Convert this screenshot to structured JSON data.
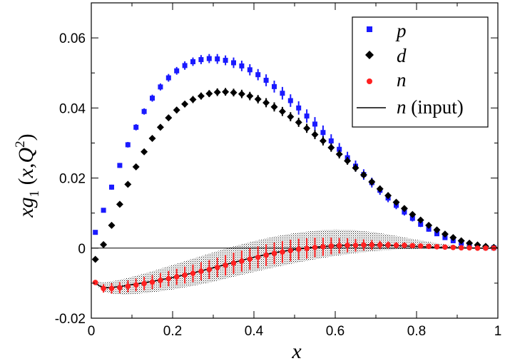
{
  "chart_data": {
    "type": "scatter",
    "title": "",
    "xlabel": "x",
    "ylabel": "xg1(x,Q^2)",
    "xlim": [
      0,
      1
    ],
    "ylim": [
      -0.02,
      0.07
    ],
    "x_ticks": [
      0,
      0.2,
      0.4,
      0.6,
      0.8,
      1
    ],
    "x_tick_labels": [
      "0",
      "0.2",
      "0.4",
      "0.6",
      "0.8",
      "1"
    ],
    "y_ticks": [
      -0.02,
      0,
      0.02,
      0.04,
      0.06
    ],
    "y_tick_labels": [
      "-0.02",
      "0",
      "0.02",
      "0.04",
      "0.06"
    ],
    "ylabel_parts": {
      "x": "x",
      "g": "g",
      "sub": "1",
      "open": " (",
      "arg": "x",
      "comma": ",",
      "Q": "Q",
      "sup": "2",
      "close": ")"
    },
    "zero_line": true,
    "legend_position": "top-right",
    "colors": {
      "p": "#1a1aff",
      "d": "#000000",
      "n": "#ff2020",
      "band": "#000000",
      "line": "#000000"
    },
    "x": [
      0.01,
      0.03,
      0.05,
      0.07,
      0.09,
      0.11,
      0.13,
      0.15,
      0.17,
      0.19,
      0.21,
      0.23,
      0.25,
      0.27,
      0.29,
      0.31,
      0.33,
      0.35,
      0.37,
      0.39,
      0.41,
      0.43,
      0.45,
      0.47,
      0.49,
      0.51,
      0.53,
      0.55,
      0.57,
      0.59,
      0.61,
      0.63,
      0.65,
      0.67,
      0.69,
      0.71,
      0.73,
      0.75,
      0.77,
      0.79,
      0.81,
      0.83,
      0.85,
      0.87,
      0.89,
      0.91,
      0.93,
      0.95,
      0.97,
      0.99
    ],
    "series": [
      {
        "name": "p",
        "marker": "square",
        "values": [
          0.0045,
          0.0108,
          0.0174,
          0.0236,
          0.0295,
          0.0345,
          0.039,
          0.0428,
          0.046,
          0.0486,
          0.0506,
          0.0521,
          0.0532,
          0.0538,
          0.0541,
          0.054,
          0.0536,
          0.0529,
          0.052,
          0.0509,
          0.0495,
          0.0479,
          0.0461,
          0.0442,
          0.0421,
          0.04,
          0.0377,
          0.0354,
          0.033,
          0.0306,
          0.0282,
          0.0258,
          0.0234,
          0.021,
          0.0187,
          0.0165,
          0.0143,
          0.0122,
          0.0103,
          0.0085,
          0.0068,
          0.0054,
          0.0041,
          0.003,
          0.0021,
          0.0014,
          0.0008,
          0.0004,
          0.0002,
          0.0001
        ],
        "errors": [
          0.0005,
          0.0006,
          0.0007,
          0.0007,
          0.0008,
          0.0009,
          0.0009,
          0.001,
          0.001,
          0.0011,
          0.0011,
          0.0012,
          0.0012,
          0.0013,
          0.0013,
          0.0014,
          0.0014,
          0.0015,
          0.0015,
          0.0016,
          0.0016,
          0.0017,
          0.0017,
          0.0018,
          0.0018,
          0.0019,
          0.0019,
          0.002,
          0.002,
          0.0019,
          0.0018,
          0.0017,
          0.0016,
          0.0015,
          0.0014,
          0.0013,
          0.0012,
          0.0011,
          0.001,
          0.0009,
          0.0008,
          0.0007,
          0.0006,
          0.0005,
          0.0004,
          0.0003,
          0.0003,
          0.0002,
          0.0002,
          0.0002
        ]
      },
      {
        "name": "d",
        "marker": "diamond",
        "values": [
          -0.0032,
          0.001,
          0.0065,
          0.0125,
          0.0182,
          0.0232,
          0.0275,
          0.0313,
          0.0345,
          0.0372,
          0.0394,
          0.0411,
          0.0424,
          0.0434,
          0.0441,
          0.0445,
          0.0446,
          0.0444,
          0.044,
          0.0434,
          0.0425,
          0.0415,
          0.0403,
          0.039,
          0.0375,
          0.0359,
          0.0342,
          0.0324,
          0.0306,
          0.0287,
          0.0268,
          0.0249,
          0.0229,
          0.0209,
          0.0189,
          0.0169,
          0.015,
          0.0131,
          0.0113,
          0.0096,
          0.008,
          0.0065,
          0.0052,
          0.004,
          0.003,
          0.0021,
          0.0014,
          0.0009,
          0.0005,
          0.0002
        ],
        "errors": [
          0.0004,
          0.0004,
          0.0005,
          0.0006,
          0.0006,
          0.0007,
          0.0007,
          0.0008,
          0.0008,
          0.0008,
          0.0009,
          0.0009,
          0.001,
          0.001,
          0.001,
          0.0011,
          0.0011,
          0.0011,
          0.0012,
          0.0012,
          0.0012,
          0.0013,
          0.0013,
          0.0013,
          0.0013,
          0.0013,
          0.0013,
          0.0013,
          0.0013,
          0.0012,
          0.0012,
          0.0011,
          0.0011,
          0.001,
          0.001,
          0.0009,
          0.0009,
          0.0008,
          0.0008,
          0.0007,
          0.0007,
          0.0006,
          0.0006,
          0.0005,
          0.0005,
          0.0004,
          0.0004,
          0.0003,
          0.0003,
          0.0003
        ]
      },
      {
        "name": "n",
        "marker": "circle",
        "values": [
          -0.0098,
          -0.0115,
          -0.0115,
          -0.0113,
          -0.0109,
          -0.0105,
          -0.0101,
          -0.0097,
          -0.0092,
          -0.0087,
          -0.0082,
          -0.0077,
          -0.0072,
          -0.0066,
          -0.0061,
          -0.0055,
          -0.0049,
          -0.0043,
          -0.0037,
          -0.0031,
          -0.0026,
          -0.002,
          -0.0015,
          -0.0011,
          -0.0007,
          -0.0003,
          -0.0001,
          0.0002,
          0.0004,
          0.0006,
          0.0007,
          0.0008,
          0.0008,
          0.0009,
          0.0009,
          0.0009,
          0.0009,
          0.0008,
          0.0008,
          0.0007,
          0.0006,
          0.0005,
          0.0004,
          0.0003,
          0.0002,
          0.0001,
          0.0001,
          0.0,
          0.0,
          0.0
        ],
        "errors": [
          0.0006,
          0.0012,
          0.0015,
          0.0016,
          0.0017,
          0.0018,
          0.0019,
          0.002,
          0.0021,
          0.0022,
          0.0023,
          0.0024,
          0.0025,
          0.0026,
          0.0027,
          0.0028,
          0.0029,
          0.003,
          0.003,
          0.0031,
          0.0031,
          0.0031,
          0.0031,
          0.0031,
          0.0031,
          0.003,
          0.0029,
          0.0028,
          0.0026,
          0.0024,
          0.0022,
          0.002,
          0.0018,
          0.0016,
          0.0014,
          0.0012,
          0.001,
          0.0009,
          0.0008,
          0.0007,
          0.0006,
          0.0005,
          0.0004,
          0.0004,
          0.0003,
          0.0003,
          0.0002,
          0.0002,
          0.0002,
          0.0002
        ]
      },
      {
        "name": "n (input)",
        "marker": "line",
        "x": [
          0.01,
          0.02,
          0.03,
          0.04,
          0.05,
          0.07,
          0.1,
          0.15,
          0.2,
          0.25,
          0.3,
          0.35,
          0.4,
          0.45,
          0.5,
          0.55,
          0.6,
          0.65,
          0.7,
          0.75,
          0.8,
          0.85,
          0.9,
          0.95,
          1.0
        ],
        "values": [
          -0.0098,
          -0.0108,
          -0.0112,
          -0.0113,
          -0.0112,
          -0.011,
          -0.0104,
          -0.0095,
          -0.0084,
          -0.0071,
          -0.0056,
          -0.0041,
          -0.0026,
          -0.0013,
          -0.0004,
          0.0003,
          0.0007,
          0.0009,
          0.0009,
          0.0007,
          0.0005,
          0.0002,
          0.0001,
          0.0,
          0.0
        ]
      }
    ],
    "band": {
      "name": "n uncertainty band",
      "x": [
        0.01,
        0.03,
        0.05,
        0.08,
        0.1,
        0.15,
        0.2,
        0.25,
        0.3,
        0.35,
        0.4,
        0.45,
        0.5,
        0.55,
        0.6,
        0.65,
        0.7,
        0.75,
        0.8,
        0.85,
        0.9,
        0.95,
        1.0
      ],
      "upper": [
        -0.0094,
        -0.0098,
        -0.0095,
        -0.0088,
        -0.0082,
        -0.0066,
        -0.0048,
        -0.003,
        -0.0012,
        0.0005,
        0.002,
        0.0033,
        0.0043,
        0.005,
        0.0053,
        0.0051,
        0.0045,
        0.0035,
        0.0024,
        0.0014,
        0.0006,
        0.0002,
        0.0
      ],
      "lower": [
        -0.0102,
        -0.0124,
        -0.013,
        -0.0133,
        -0.0132,
        -0.0126,
        -0.0118,
        -0.0108,
        -0.0096,
        -0.0082,
        -0.0068,
        -0.0055,
        -0.0043,
        -0.0032,
        -0.0022,
        -0.0014,
        -0.0008,
        -0.0004,
        -0.0002,
        -0.0001,
        0.0,
        0.0,
        0.0
      ]
    },
    "legend": [
      {
        "label": "p",
        "marker": "square"
      },
      {
        "label": "d",
        "marker": "diamond"
      },
      {
        "label": "n",
        "marker": "circle"
      },
      {
        "label": "n",
        "suffix": " (input)",
        "marker": "line"
      }
    ]
  }
}
